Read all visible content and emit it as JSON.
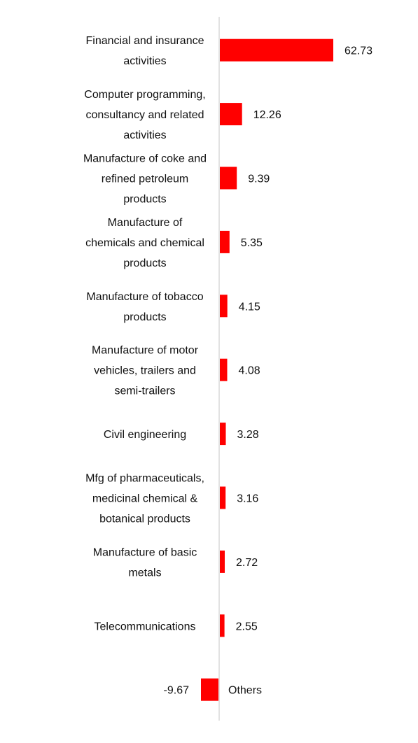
{
  "chart_data": {
    "type": "bar",
    "orientation": "horizontal",
    "categories": [
      "Financial and insurance activities",
      "Computer programming, consultancy and related activities",
      "Manufacture of coke and refined petroleum products",
      "Manufacture of chemicals and chemical products",
      "Manufacture of tobacco products",
      "Manufacture of motor vehicles, trailers and semi-trailers",
      "Civil engineering",
      "Mfg of pharmaceuticals, medicinal chemical & botanical products",
      "Manufacture of basic metals",
      "Telecommunications",
      "Others"
    ],
    "category_lines": [
      [
        "Financial and insurance",
        "activities"
      ],
      [
        "Computer programming,",
        "consultancy and related",
        "activities"
      ],
      [
        "Manufacture of coke and",
        "refined petroleum",
        "products"
      ],
      [
        "Manufacture of",
        "chemicals and chemical",
        "products"
      ],
      [
        "Manufacture of tobacco",
        "products"
      ],
      [
        "Manufacture of motor",
        "vehicles, trailers and",
        "semi-trailers"
      ],
      [
        "Civil engineering"
      ],
      [
        "Mfg of pharmaceuticals,",
        "medicinal chemical &",
        "botanical products"
      ],
      [
        "Manufacture of basic",
        "metals"
      ],
      [
        "Telecommunications"
      ],
      [
        "Others"
      ]
    ],
    "values": [
      62.73,
      12.26,
      9.39,
      5.35,
      4.15,
      4.08,
      3.28,
      3.16,
      2.72,
      2.55,
      -9.67
    ],
    "value_labels": [
      "62.73",
      "12.26",
      "9.39",
      "5.35",
      "4.15",
      "4.08",
      "3.28",
      "3.16",
      "2.72",
      "2.55",
      "-9.67"
    ],
    "title": "",
    "xlabel": "",
    "ylabel": "",
    "bar_color": "#ff0000",
    "axis_color": "#d9d9d9",
    "grid": false,
    "legend": "none"
  }
}
